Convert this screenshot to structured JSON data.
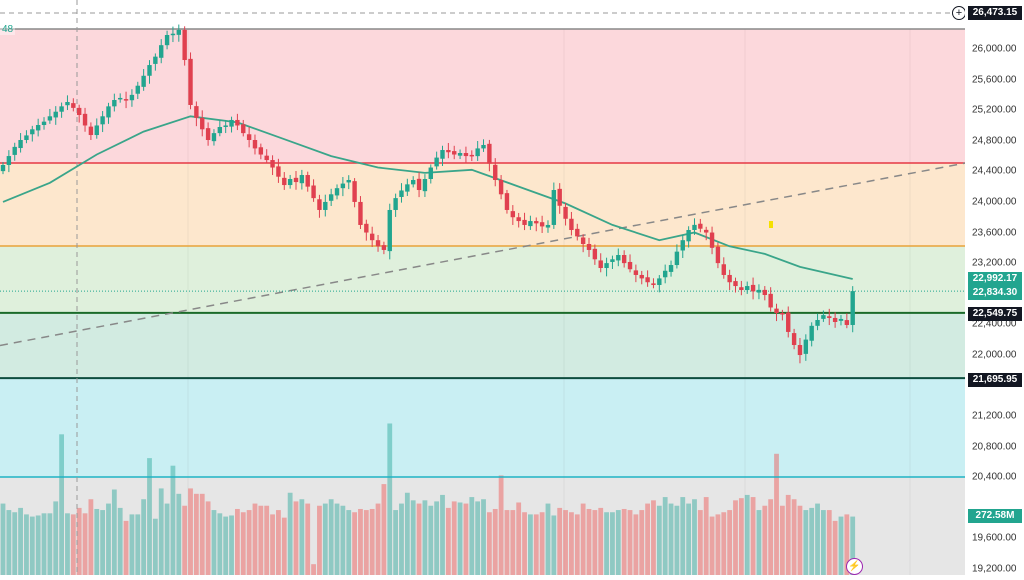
{
  "header": {
    "partial_label": "48"
  },
  "price_axis": {
    "ticks": [
      "26,000.00",
      "25,600.00",
      "25,200.00",
      "24,800.00",
      "24,400.00",
      "24,000.00",
      "23,600.00",
      "23,200.00",
      "22,400.00",
      "22,000.00",
      "21,200.00",
      "20,800.00",
      "20,400.00",
      "19,600.00",
      "19,200.00"
    ],
    "tick_values": [
      26000,
      25600,
      25200,
      24800,
      24400,
      24000,
      23600,
      23200,
      22400,
      22000,
      21200,
      20800,
      20400,
      19600,
      19200
    ],
    "crosshair_tag": "26,473.15",
    "ma_tag": "22,992.17",
    "last_price_tag": "22,834.30",
    "level_tag_1": "22,549.75",
    "level_tag_2": "21,695.95",
    "volume_tag": "272.58M"
  },
  "colors": {
    "up": "#22a58f",
    "down": "#e0404f",
    "ma": "#3aa58a",
    "red_line": "#e53945",
    "orange_line": "#e8a33a",
    "green_line": "#1b6b2a",
    "dark_line": "#0d4d3e",
    "cyan_line": "#1fb3c4"
  },
  "chart_data": {
    "type": "candlestick",
    "ylim": [
      19200,
      26000
    ],
    "levels": {
      "top": 26262,
      "red": 24509,
      "orange": 23424,
      "green": 22549.75,
      "dark": 21695.95,
      "cyan": 20403,
      "crosshair": 26473.15
    },
    "trendline": [
      [
        0,
        22130
      ],
      [
        145,
        24230
      ]
    ],
    "closes": [
      24483,
      24600,
      24720,
      24810,
      24870,
      24950,
      25006,
      25050,
      25120,
      25180,
      25250,
      25307,
      25230,
      25137,
      25000,
      24875,
      25000,
      25120,
      25250,
      25333,
      25360,
      25330,
      25400,
      25520,
      25650,
      25790,
      25900,
      26050,
      26183,
      26200,
      26250,
      25856,
      25268,
      25100,
      24950,
      24810,
      24900,
      24980,
      25000,
      25072,
      25000,
      24900,
      24810,
      24700,
      24620,
      24548,
      24450,
      24330,
      24221,
      24300,
      24260,
      24352,
      24200,
      24050,
      23895,
      24000,
      24100,
      24180,
      24240,
      24287,
      24000,
      23699,
      23600,
      23500,
      23420,
      23372,
      23895,
      24050,
      24150,
      24230,
      24287,
      24156,
      24300,
      24450,
      24580,
      24679,
      24650,
      24620,
      24640,
      24600,
      24614,
      24700,
      24745,
      24500,
      24287,
      24100,
      23895,
      23800,
      23750,
      23699,
      23750,
      23720,
      23680,
      23699,
      24156,
      23950,
      23780,
      23633,
      23550,
      23450,
      23372,
      23250,
      23136,
      23200,
      23250,
      23306,
      23200,
      23120,
      23045,
      23000,
      22950,
      22914,
      23000,
      23100,
      23175,
      23350,
      23500,
      23633,
      23700,
      23650,
      23600,
      23400,
      23200,
      23045,
      22950,
      22900,
      22848,
      22900,
      22830,
      22850,
      22783,
      22620,
      22548,
      22540,
      22300,
      22129,
      21998,
      22200,
      22380,
      22456,
      22520,
      22483,
      22430,
      22470,
      22391,
      22834
    ],
    "volumes_m": [
      330,
      300,
      290,
      310,
      280,
      270,
      275,
      285,
      285,
      340,
      650,
      285,
      280,
      310,
      285,
      350,
      305,
      300,
      330,
      395,
      310,
      250,
      280,
      280,
      350,
      540,
      260,
      400,
      330,
      505,
      375,
      320,
      400,
      375,
      375,
      340,
      300,
      285,
      270,
      275,
      305,
      290,
      300,
      330,
      320,
      320,
      280,
      300,
      265,
      380,
      340,
      350,
      330,
      50,
      320,
      330,
      350,
      330,
      320,
      300,
      290,
      305,
      300,
      305,
      330,
      420,
      700,
      300,
      330,
      380,
      345,
      330,
      345,
      320,
      340,
      370,
      310,
      340,
      335,
      330,
      360,
      340,
      350,
      290,
      305,
      460,
      300,
      300,
      335,
      290,
      280,
      280,
      290,
      330,
      275,
      310,
      300,
      290,
      280,
      330,
      305,
      300,
      310,
      290,
      290,
      300,
      305,
      300,
      280,
      300,
      330,
      345,
      320,
      360,
      330,
      320,
      360,
      330,
      350,
      300,
      360,
      270,
      280,
      290,
      300,
      345,
      355,
      370,
      360,
      300,
      320,
      350,
      560,
      320,
      370,
      350,
      320,
      300,
      310,
      330,
      300,
      300,
      250,
      270,
      280,
      270
    ]
  },
  "ma_points": [
    [
      0,
      24000
    ],
    [
      8,
      24250
    ],
    [
      16,
      24620
    ],
    [
      24,
      24920
    ],
    [
      32,
      25120
    ],
    [
      40,
      25040
    ],
    [
      48,
      24820
    ],
    [
      56,
      24600
    ],
    [
      64,
      24450
    ],
    [
      72,
      24380
    ],
    [
      80,
      24420
    ],
    [
      88,
      24200
    ],
    [
      96,
      23980
    ],
    [
      104,
      23700
    ],
    [
      112,
      23500
    ],
    [
      118,
      23600
    ],
    [
      124,
      23420
    ],
    [
      130,
      23320
    ],
    [
      136,
      23150
    ],
    [
      145,
      22992.17
    ]
  ]
}
